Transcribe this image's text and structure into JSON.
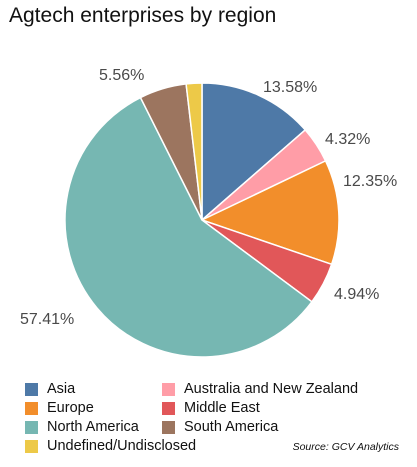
{
  "chart_data": {
    "type": "pie",
    "title": "Agtech enterprises by region",
    "slices": [
      {
        "name": "Asia",
        "value": 13.58,
        "label": "13.58%",
        "color": "#4e79a7"
      },
      {
        "name": "Australia and New Zealand",
        "value": 4.32,
        "label": "4.32%",
        "color": "#ff9da7"
      },
      {
        "name": "Europe",
        "value": 12.35,
        "label": "12.35%",
        "color": "#f28e2b"
      },
      {
        "name": "Middle East",
        "value": 4.94,
        "label": "4.94%",
        "color": "#e15759"
      },
      {
        "name": "North America",
        "value": 57.41,
        "label": "57.41%",
        "color": "#76b7b2"
      },
      {
        "name": "South America",
        "value": 5.56,
        "label": "5.56%",
        "color": "#9c755f"
      },
      {
        "name": "Undefined/Undisclosed",
        "value": 1.85,
        "label": "",
        "color": "#edc948"
      }
    ],
    "legend": {
      "placement": "bottom",
      "items": [
        {
          "name": "Asia",
          "color": "#4e79a7"
        },
        {
          "name": "Australia and New Zealand",
          "color": "#ff9da7"
        },
        {
          "name": "Europe",
          "color": "#f28e2b"
        },
        {
          "name": "Middle East",
          "color": "#e15759"
        },
        {
          "name": "North America",
          "color": "#76b7b2"
        },
        {
          "name": "South America",
          "color": "#9c755f"
        },
        {
          "name": "Undefined/Undisclosed",
          "color": "#edc948"
        }
      ]
    },
    "source": "Source: GCV Analytics"
  }
}
